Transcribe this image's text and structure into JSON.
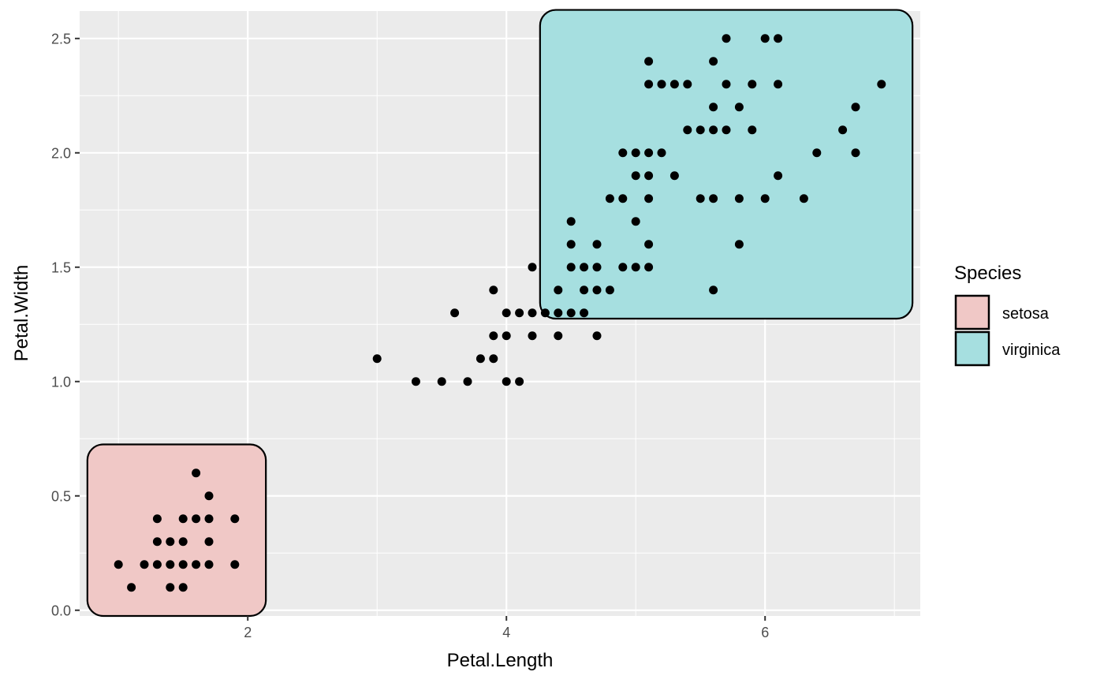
{
  "chart_data": {
    "type": "scatter",
    "xlabel": "Petal.Length",
    "ylabel": "Petal.Width",
    "xlim": [
      0.7,
      7.2
    ],
    "ylim": [
      -0.025,
      2.62
    ],
    "x_ticks": [
      2,
      4,
      6
    ],
    "y_ticks": [
      0.0,
      0.5,
      1.0,
      1.5,
      2.0,
      2.5
    ],
    "y_tick_labels": [
      "0.0",
      "0.5",
      "1.0",
      "1.5",
      "2.0",
      "2.5"
    ],
    "grid": true,
    "point_color": "#000000",
    "legend": {
      "title": "Species",
      "position": "right",
      "entries": [
        {
          "label": "setosa",
          "fill": "#f0c8c6"
        },
        {
          "label": "virginica",
          "fill": "#a6dfe0"
        }
      ]
    },
    "hulls": [
      {
        "group": "setosa",
        "fill": "#f0c8c6",
        "x_range": [
          1.0,
          1.9
        ],
        "y_range": [
          0.1,
          0.6
        ]
      },
      {
        "group": "virginica",
        "fill": "#a6dfe0",
        "x_range": [
          4.5,
          6.9
        ],
        "y_range": [
          1.4,
          2.5
        ]
      }
    ],
    "points": [
      [
        1.0,
        0.2
      ],
      [
        1.1,
        0.1
      ],
      [
        1.2,
        0.2
      ],
      [
        1.3,
        0.2
      ],
      [
        1.3,
        0.3
      ],
      [
        1.3,
        0.4
      ],
      [
        1.4,
        0.1
      ],
      [
        1.4,
        0.2
      ],
      [
        1.4,
        0.3
      ],
      [
        1.5,
        0.1
      ],
      [
        1.5,
        0.2
      ],
      [
        1.5,
        0.3
      ],
      [
        1.5,
        0.4
      ],
      [
        1.6,
        0.2
      ],
      [
        1.6,
        0.4
      ],
      [
        1.6,
        0.6
      ],
      [
        1.7,
        0.2
      ],
      [
        1.7,
        0.3
      ],
      [
        1.7,
        0.4
      ],
      [
        1.7,
        0.5
      ],
      [
        1.9,
        0.2
      ],
      [
        1.9,
        0.4
      ],
      [
        3.0,
        1.1
      ],
      [
        3.3,
        1.0
      ],
      [
        3.5,
        1.0
      ],
      [
        3.6,
        1.3
      ],
      [
        3.7,
        1.0
      ],
      [
        3.8,
        1.1
      ],
      [
        3.9,
        1.1
      ],
      [
        3.9,
        1.2
      ],
      [
        3.9,
        1.4
      ],
      [
        4.0,
        1.0
      ],
      [
        4.0,
        1.2
      ],
      [
        4.0,
        1.3
      ],
      [
        4.1,
        1.0
      ],
      [
        4.1,
        1.3
      ],
      [
        4.2,
        1.2
      ],
      [
        4.2,
        1.3
      ],
      [
        4.2,
        1.5
      ],
      [
        4.3,
        1.3
      ],
      [
        4.4,
        1.2
      ],
      [
        4.4,
        1.3
      ],
      [
        4.4,
        1.4
      ],
      [
        4.5,
        1.3
      ],
      [
        4.5,
        1.5
      ],
      [
        4.5,
        1.6
      ],
      [
        4.5,
        1.7
      ],
      [
        4.6,
        1.3
      ],
      [
        4.6,
        1.4
      ],
      [
        4.6,
        1.5
      ],
      [
        4.7,
        1.2
      ],
      [
        4.7,
        1.4
      ],
      [
        4.7,
        1.5
      ],
      [
        4.7,
        1.6
      ],
      [
        4.8,
        1.4
      ],
      [
        4.8,
        1.8
      ],
      [
        4.9,
        1.5
      ],
      [
        4.9,
        1.8
      ],
      [
        4.9,
        2.0
      ],
      [
        5.0,
        1.5
      ],
      [
        5.0,
        1.7
      ],
      [
        5.0,
        1.9
      ],
      [
        5.0,
        2.0
      ],
      [
        5.1,
        1.5
      ],
      [
        5.1,
        1.6
      ],
      [
        5.1,
        1.8
      ],
      [
        5.1,
        1.9
      ],
      [
        5.1,
        2.0
      ],
      [
        5.1,
        2.3
      ],
      [
        5.1,
        2.4
      ],
      [
        5.2,
        2.0
      ],
      [
        5.2,
        2.3
      ],
      [
        5.3,
        1.9
      ],
      [
        5.3,
        2.3
      ],
      [
        5.4,
        2.1
      ],
      [
        5.4,
        2.3
      ],
      [
        5.5,
        1.8
      ],
      [
        5.5,
        2.1
      ],
      [
        5.6,
        1.4
      ],
      [
        5.6,
        1.8
      ],
      [
        5.6,
        2.1
      ],
      [
        5.6,
        2.2
      ],
      [
        5.6,
        2.4
      ],
      [
        5.7,
        2.1
      ],
      [
        5.7,
        2.3
      ],
      [
        5.7,
        2.5
      ],
      [
        5.8,
        1.6
      ],
      [
        5.8,
        1.8
      ],
      [
        5.8,
        2.2
      ],
      [
        5.9,
        2.1
      ],
      [
        5.9,
        2.3
      ],
      [
        6.0,
        1.8
      ],
      [
        6.0,
        2.5
      ],
      [
        6.1,
        1.9
      ],
      [
        6.1,
        2.3
      ],
      [
        6.1,
        2.5
      ],
      [
        6.3,
        1.8
      ],
      [
        6.4,
        2.0
      ],
      [
        6.6,
        2.1
      ],
      [
        6.7,
        2.0
      ],
      [
        6.7,
        2.2
      ],
      [
        6.9,
        2.3
      ]
    ]
  }
}
